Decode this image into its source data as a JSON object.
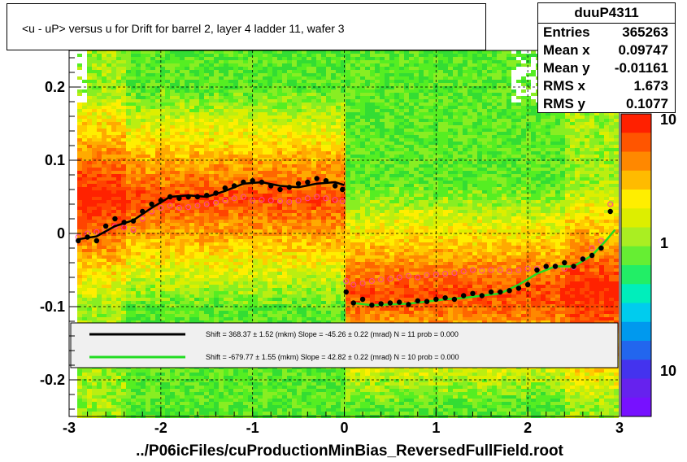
{
  "title": "<u - uP>       versus   u for Drift for barrel 2, layer 4 ladder 11, wafer 3",
  "stats": {
    "name": "duuP4311",
    "rows": [
      {
        "label": "Entries",
        "value": "365263"
      },
      {
        "label": "Mean x",
        "value": "0.09747"
      },
      {
        "label": "Mean y",
        "value": "-0.01161"
      },
      {
        "label": "RMS x",
        "value": "1.673"
      },
      {
        "label": "RMS y",
        "value": "0.1077"
      }
    ]
  },
  "footer": "../P06icFiles/cuProductionMinBias_ReversedFullField.root",
  "colors": {
    "profile_black": "#000000",
    "profile_magenta": "#ff3fa0",
    "fit_black": "#000000",
    "fit_green": "#22dd22",
    "hist_high": "#ff2000",
    "hist_mid": "#ffdd00",
    "hist_low": "#33dd33"
  },
  "chart_data": {
    "type": "heatmap",
    "xlim": [
      -3,
      3
    ],
    "ylim": [
      -0.25,
      0.25
    ],
    "x_ticks": [
      -3,
      -2,
      -1,
      0,
      1,
      2,
      3
    ],
    "x_tick_labels": [
      "-3",
      "-2",
      "-1",
      "0",
      "1",
      "2",
      "3"
    ],
    "y_ticks": [
      0.2,
      0.1,
      0,
      -0.1,
      -0.2
    ],
    "y_tick_labels": [
      "0.2",
      "0.1",
      "0",
      "-0.1",
      "-0.2"
    ],
    "grid": true,
    "colorbar": {
      "scale": "log",
      "labels": [
        "10",
        "1",
        "10"
      ]
    },
    "series": [
      {
        "x": [
          -2.9,
          -2.8,
          -2.7,
          -2.6,
          -2.5,
          -2.4,
          -2.3,
          -2.2,
          -2.1,
          -2.0,
          -1.9,
          -1.8,
          -1.7,
          -1.6,
          -1.5,
          -1.4,
          -1.3,
          -1.2,
          -1.1,
          -1.0,
          -0.9,
          -0.8,
          -0.7,
          -0.6,
          -0.5,
          -0.4,
          -0.3,
          -0.2,
          -0.1,
          -0.02,
          0.02,
          0.1,
          0.2,
          0.3,
          0.4,
          0.5,
          0.6,
          0.7,
          0.8,
          0.9,
          1.0,
          1.1,
          1.2,
          1.3,
          1.4,
          1.5,
          1.6,
          1.7,
          1.8,
          1.9,
          2.0,
          2.1,
          2.2,
          2.3,
          2.4,
          2.5,
          2.6,
          2.7,
          2.8,
          2.9
        ],
        "y": [
          -0.01,
          -0.005,
          -0.01,
          0.01,
          0.02,
          0.015,
          0.017,
          0.03,
          0.04,
          0.045,
          0.05,
          0.048,
          0.05,
          0.05,
          0.052,
          0.055,
          0.062,
          0.065,
          0.07,
          0.072,
          0.07,
          0.065,
          0.06,
          0.063,
          0.068,
          0.07,
          0.075,
          0.072,
          0.065,
          0.06,
          -0.08,
          -0.095,
          -0.09,
          -0.098,
          -0.096,
          -0.095,
          -0.094,
          -0.097,
          -0.092,
          -0.093,
          -0.09,
          -0.088,
          -0.09,
          -0.085,
          -0.082,
          -0.085,
          -0.08,
          -0.08,
          -0.078,
          -0.075,
          -0.07,
          -0.05,
          -0.045,
          -0.045,
          -0.04,
          -0.045,
          -0.035,
          -0.03,
          -0.02,
          0.03
        ]
      },
      {
        "x": [
          -2.9,
          -2.8,
          -2.7,
          -2.6,
          -2.5,
          -2.4,
          -2.3,
          -2.2,
          -2.1,
          -2.0,
          -1.9,
          -1.8,
          -1.7,
          -1.6,
          -1.5,
          -1.4,
          -1.3,
          -1.2,
          -1.1,
          -1.0,
          -0.9,
          -0.8,
          -0.7,
          -0.6,
          -0.5,
          -0.4,
          -0.3,
          -0.2,
          -0.1,
          -0.02,
          0.02,
          0.1,
          0.2,
          0.3,
          0.4,
          0.5,
          0.6,
          0.7,
          0.8,
          0.9,
          1.0,
          1.1,
          1.2,
          1.3,
          1.4,
          1.5,
          1.6,
          1.7,
          1.8,
          1.9,
          2.0,
          2.1,
          2.2,
          2.3,
          2.4,
          2.5,
          2.6,
          2.7,
          2.8,
          2.9
        ],
        "y": [
          -0.005,
          0.0,
          0.002,
          0.005,
          0.01,
          0.008,
          0.005,
          0.02,
          0.03,
          0.035,
          0.038,
          0.035,
          0.036,
          0.038,
          0.04,
          0.042,
          0.045,
          0.048,
          0.05,
          0.045,
          0.046,
          0.045,
          0.044,
          0.043,
          0.045,
          0.048,
          0.05,
          0.048,
          0.046,
          0.044,
          -0.065,
          -0.07,
          -0.068,
          -0.065,
          -0.063,
          -0.062,
          -0.06,
          -0.058,
          -0.06,
          -0.057,
          -0.056,
          -0.055,
          -0.054,
          -0.052,
          -0.05,
          -0.051,
          -0.05,
          -0.05,
          -0.052,
          -0.05,
          -0.048,
          -0.048,
          -0.046,
          -0.045,
          -0.048,
          -0.046,
          -0.035,
          -0.02,
          -0.01,
          0.04
        ]
      },
      {
        "x": [
          -2.9,
          -2.7,
          -2.5,
          -2.3,
          -2.1,
          -1.9,
          -1.7,
          -1.5,
          -1.3,
          -1.1,
          -0.9,
          -0.7,
          -0.5,
          -0.3,
          -0.1,
          0.0
        ],
        "y": [
          -0.008,
          -0.004,
          0.01,
          0.018,
          0.035,
          0.05,
          0.052,
          0.05,
          0.058,
          0.068,
          0.07,
          0.065,
          0.063,
          0.068,
          0.07,
          0.066
        ]
      },
      {
        "x": [
          0.1,
          0.3,
          0.5,
          0.7,
          0.9,
          1.1,
          1.3,
          1.5,
          1.7,
          1.9,
          2.1,
          2.3,
          2.5,
          2.7,
          2.85,
          2.95
        ],
        "y": [
          -0.095,
          -0.098,
          -0.097,
          -0.096,
          -0.093,
          -0.09,
          -0.088,
          -0.085,
          -0.082,
          -0.07,
          -0.055,
          -0.045,
          -0.045,
          -0.03,
          -0.01,
          0.005
        ]
      }
    ],
    "fit_results": [
      "Shift =   368.37 ± 1.52 (mkm) Slope =    -45.26 ± 0.22 (mrad)  N = 11 prob = 0.000",
      "Shift =  -679.77 ± 1.55 (mkm) Slope =     42.82 ± 0.22 (mrad)  N = 10 prob = 0.000"
    ]
  }
}
